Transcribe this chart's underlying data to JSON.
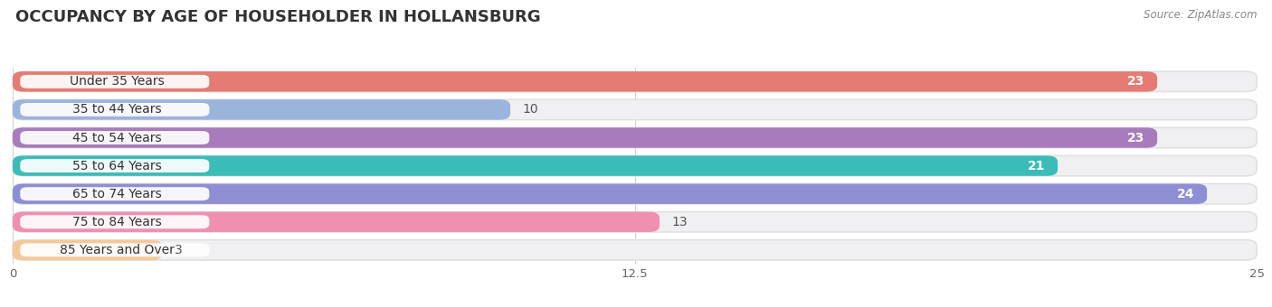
{
  "title": "OCCUPANCY BY AGE OF HOUSEHOLDER IN HOLLANSBURG",
  "source": "Source: ZipAtlas.com",
  "categories": [
    "Under 35 Years",
    "35 to 44 Years",
    "45 to 54 Years",
    "55 to 64 Years",
    "65 to 74 Years",
    "75 to 84 Years",
    "85 Years and Over"
  ],
  "values": [
    23,
    10,
    23,
    21,
    24,
    13,
    3
  ],
  "bar_colors": [
    "#E57B72",
    "#9BB4DC",
    "#A87BBC",
    "#3BBCB8",
    "#8E8ED4",
    "#F090B0",
    "#F5C898"
  ],
  "bar_bg_colors": [
    "#EDEDEE",
    "#EDEDEE",
    "#EDEDEE",
    "#EDEDEE",
    "#EDEDEE",
    "#EDEDEE",
    "#EDEDEE"
  ],
  "xlim": [
    0,
    25
  ],
  "xticks": [
    0,
    12.5,
    25
  ],
  "label_fontsize": 10,
  "value_fontsize": 10,
  "title_fontsize": 13,
  "bar_height": 0.72,
  "background_color": "#ffffff",
  "value_white_threshold": 18
}
